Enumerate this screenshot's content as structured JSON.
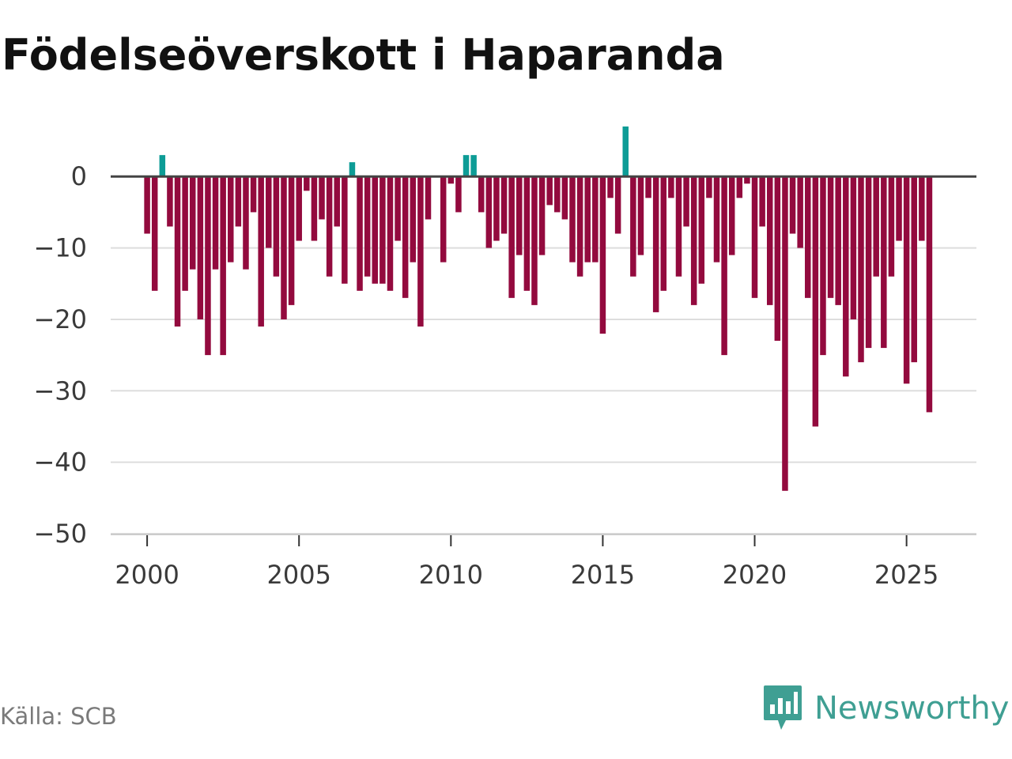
{
  "title": "Födelseöverskott i Haparanda",
  "source": "Källa: SCB",
  "brand": {
    "name": "Newsworthy",
    "icon": "newsworthy-logo-icon"
  },
  "colors": {
    "positive": "#0d9c96",
    "negative": "#930a3e",
    "zero_line": "#444444",
    "grid": "#dddddd",
    "brand": "#3f9f93"
  },
  "chart_data": {
    "type": "bar",
    "title": "Födelseöverskott i Haparanda",
    "xlabel": "",
    "ylabel": "",
    "ylim": [
      -50,
      7
    ],
    "xlim": [
      1998.8,
      2027.3
    ],
    "yticks": [
      0,
      -10,
      -20,
      -30,
      -40,
      -50
    ],
    "ytick_labels": [
      "0",
      "−10",
      "−20",
      "−30",
      "−40",
      "−50"
    ],
    "xticks": [
      2000,
      2005,
      2010,
      2015,
      2020,
      2025
    ],
    "xtick_labels": [
      "2000",
      "2005",
      "2010",
      "2015",
      "2020",
      "2025"
    ],
    "grid": true,
    "frequency": "quarterly",
    "start": [
      2000,
      1
    ],
    "values": [
      -8,
      -16,
      3,
      -7,
      -21,
      -16,
      -13,
      -20,
      -25,
      -13,
      -25,
      -12,
      -7,
      -13,
      -5,
      -21,
      -10,
      -14,
      -20,
      -18,
      -9,
      -2,
      -9,
      -6,
      -14,
      -7,
      -15,
      2,
      -16,
      -14,
      -15,
      -15,
      -16,
      -9,
      -17,
      -12,
      -21,
      -6,
      0,
      -12,
      -1,
      -5,
      3,
      3,
      -5,
      -10,
      -9,
      -8,
      -17,
      -11,
      -16,
      -18,
      -11,
      -4,
      -5,
      -6,
      -12,
      -14,
      -12,
      -12,
      -22,
      -3,
      -8,
      7,
      -14,
      -11,
      -3,
      -19,
      -16,
      -3,
      -14,
      -7,
      -18,
      -15,
      -3,
      -12,
      -25,
      -11,
      -3,
      -1,
      -17,
      -7,
      -18,
      -23,
      -44,
      -8,
      -10,
      -17,
      -35,
      -25,
      -17,
      -18,
      -28,
      -20,
      -26,
      -24,
      -14,
      -24,
      -14,
      -9,
      -29,
      -26,
      -9,
      -33
    ]
  }
}
